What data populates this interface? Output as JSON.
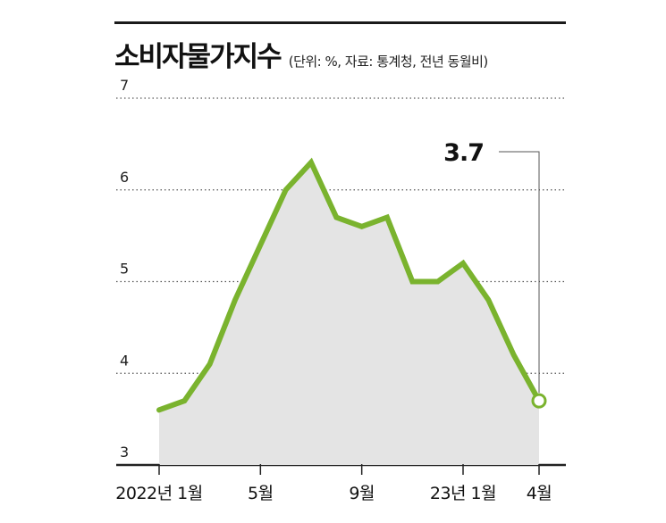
{
  "title": "소비자물가지수",
  "subtitle": "(단위: %, 자료: 통계청, 전년 동월비)",
  "colors": {
    "line": "#7ab32e",
    "area": "#e4e4e4",
    "grid": "#555555",
    "text": "#111111"
  },
  "chart_data": {
    "type": "area",
    "x": [
      "2022-01",
      "2022-02",
      "2022-03",
      "2022-04",
      "2022-05",
      "2022-06",
      "2022-07",
      "2022-08",
      "2022-09",
      "2022-10",
      "2022-11",
      "2022-12",
      "2023-01",
      "2023-02",
      "2023-03",
      "2023-04"
    ],
    "series": [
      {
        "values": [
          3.6,
          3.7,
          4.1,
          4.8,
          5.4,
          6.0,
          6.3,
          5.7,
          5.6,
          5.7,
          5.0,
          5.0,
          5.2,
          4.8,
          4.2,
          3.7
        ]
      }
    ],
    "ylim": [
      3,
      7
    ],
    "yticks": [
      3,
      4,
      5,
      6,
      7
    ],
    "grid": true,
    "xtick_labels": [
      {
        "index": 0,
        "label": "2022년 1월"
      },
      {
        "index": 4,
        "label": "5월"
      },
      {
        "index": 8,
        "label": "9월"
      },
      {
        "index": 12,
        "label": "23년 1월"
      },
      {
        "index": 15,
        "label": "4월"
      }
    ],
    "annotation": {
      "index": 15,
      "label": "3.7"
    }
  }
}
